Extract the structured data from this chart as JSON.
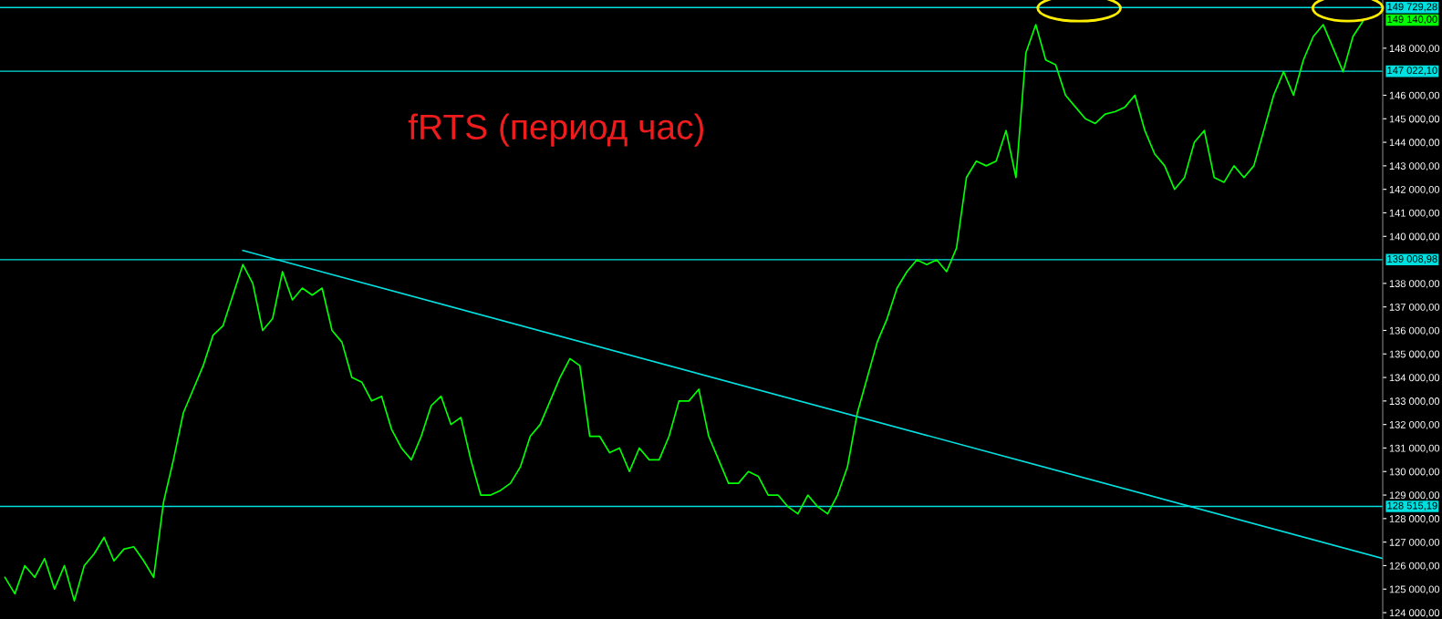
{
  "chart_data": {
    "type": "line",
    "title": "fRTS (период час)",
    "categories": [
      null,
      null,
      null,
      null,
      null,
      null,
      null,
      null,
      null,
      null,
      null,
      null,
      null,
      null,
      null,
      null,
      null,
      null,
      null,
      null,
      null,
      null,
      null,
      null,
      null,
      null,
      null,
      null,
      null,
      null,
      null,
      null,
      null,
      null,
      null,
      null,
      null,
      null,
      null,
      null,
      null,
      null,
      null,
      null,
      null,
      null,
      null,
      null,
      null,
      null,
      null,
      null,
      null,
      null,
      null,
      null,
      null,
      null,
      null,
      null,
      null,
      null,
      null,
      null,
      null,
      null,
      null,
      null,
      null,
      null,
      null,
      null,
      null,
      null,
      null,
      null,
      null,
      null,
      null,
      null,
      null,
      null,
      null,
      null,
      null,
      null,
      null,
      null,
      null,
      null,
      null,
      null,
      null,
      null,
      null,
      null,
      null,
      null,
      null,
      null,
      null,
      null,
      null,
      null,
      null,
      null,
      null,
      null,
      null,
      null,
      null,
      null,
      null,
      null,
      null,
      null,
      null,
      null,
      null,
      null,
      null,
      null,
      null,
      null,
      null,
      null,
      null,
      null,
      null,
      null,
      null,
      null,
      null,
      null,
      null,
      null,
      null,
      null,
      null,
      null
    ],
    "series": [
      {
        "color": "#00ff00",
        "values": [
          125500,
          124800,
          126000,
          125500,
          126300,
          125000,
          126000,
          124500,
          126000,
          126500,
          127200,
          126200,
          126700,
          126800,
          126200,
          125500,
          128700,
          130500,
          132500,
          133500,
          134500,
          135800,
          136200,
          137500,
          138800,
          138000,
          136000,
          136500,
          138500,
          137300,
          137800,
          137500,
          137800,
          136000,
          135500,
          134000,
          133800,
          133000,
          133200,
          131800,
          131000,
          130500,
          131500,
          132800,
          133200,
          132000,
          132300,
          130500,
          129000,
          129000,
          129200,
          129500,
          130200,
          131500,
          132000,
          133000,
          134000,
          134800,
          134500,
          131500,
          131500,
          130800,
          131000,
          130000,
          131000,
          130500,
          130500,
          131500,
          133000,
          133000,
          133500,
          131500,
          130500,
          129500,
          129500,
          130000,
          129800,
          129000,
          129000,
          128500,
          128200,
          129000,
          128500,
          128200,
          129000,
          130200,
          132500,
          134000,
          135500,
          136500,
          137800,
          138500,
          139000,
          138800,
          139000,
          138500,
          139500,
          142500,
          143200,
          143000,
          143200,
          144500,
          142500,
          147800,
          149000,
          147500,
          147300,
          146000,
          145500,
          145000,
          144800,
          145200,
          145300,
          145500,
          146000,
          144500,
          143500,
          143000,
          142000,
          142500,
          144000,
          144500,
          142500,
          142300,
          143000,
          142500,
          143000,
          144500,
          146000,
          147000,
          146000,
          147500,
          148500,
          149000,
          148000,
          147000,
          148500,
          149140,
          null,
          null
        ]
      },
      {
        "type": "line",
        "color": "#00e0e0",
        "values": [
          null,
          null,
          null,
          null,
          null,
          null,
          null,
          null,
          null,
          null,
          null,
          null,
          null,
          null,
          null,
          null,
          null,
          null,
          null,
          null,
          null,
          null,
          null,
          null,
          139400,
          null,
          null,
          null,
          null,
          null,
          null,
          null,
          null,
          null,
          null,
          null,
          null,
          null,
          null,
          null,
          null,
          null,
          null,
          null,
          null,
          null,
          null,
          null,
          null,
          null,
          null,
          null,
          null,
          null,
          null,
          null,
          null,
          null,
          null,
          null,
          null,
          null,
          null,
          null,
          null,
          null,
          null,
          null,
          null,
          null,
          null,
          null,
          null,
          null,
          null,
          null,
          null,
          null,
          null,
          null,
          null,
          null,
          null,
          null,
          null,
          null,
          null,
          null,
          null,
          null,
          null,
          null,
          null,
          null,
          null,
          null,
          null,
          null,
          null,
          null,
          null,
          null,
          null,
          null,
          null,
          null,
          null,
          null,
          null,
          null,
          null,
          null,
          null,
          null,
          null,
          null,
          null,
          null,
          null,
          null,
          null,
          null,
          null,
          null,
          null,
          null,
          null,
          null,
          null,
          null,
          null,
          null,
          null,
          null,
          null,
          null,
          null,
          null,
          null,
          126300
        ]
      }
    ],
    "ylim": [
      123730,
      150050
    ],
    "yticks": [
      {
        "value": 124000,
        "label": "124 000,00"
      },
      {
        "value": 125000,
        "label": "125 000,00"
      },
      {
        "value": 126000,
        "label": "126 000,00"
      },
      {
        "value": 127000,
        "label": "127 000,00"
      },
      {
        "value": 128000,
        "label": "128 000,00"
      },
      {
        "value": 129000,
        "label": "129 000,00"
      },
      {
        "value": 130000,
        "label": "130 000,00"
      },
      {
        "value": 131000,
        "label": "131 000,00"
      },
      {
        "value": 132000,
        "label": "132 000,00"
      },
      {
        "value": 133000,
        "label": "133 000,00"
      },
      {
        "value": 134000,
        "label": "134 000,00"
      },
      {
        "value": 135000,
        "label": "135 000,00"
      },
      {
        "value": 136000,
        "label": "136 000,00"
      },
      {
        "value": 137000,
        "label": "137 000,00"
      },
      {
        "value": 138000,
        "label": "138 000,00"
      },
      {
        "value": 140000,
        "label": "140 000,00"
      },
      {
        "value": 141000,
        "label": "141 000,00"
      },
      {
        "value": 142000,
        "label": "142 000,00"
      },
      {
        "value": 143000,
        "label": "143 000,00"
      },
      {
        "value": 144000,
        "label": "144 000,00"
      },
      {
        "value": 145000,
        "label": "145 000,00"
      },
      {
        "value": 146000,
        "label": "146 000,00"
      },
      {
        "value": 148000,
        "label": "148 000,00"
      }
    ],
    "ref_lines": [
      {
        "axis": "y",
        "value": 149729.28,
        "label": "149 729,28",
        "color": "#00e0e0"
      },
      {
        "axis": "y",
        "value": 147022.1,
        "label": "147 022,10",
        "color": "#00e0e0"
      },
      {
        "axis": "y",
        "value": 139008.98,
        "label": "139 008,98",
        "color": "#00e0e0"
      },
      {
        "axis": "y",
        "value": 128515.19,
        "label": "128 515,19",
        "color": "#00e0e0"
      }
    ],
    "annotations": [
      "149 140,00"
    ],
    "grid": false,
    "legend": false
  }
}
